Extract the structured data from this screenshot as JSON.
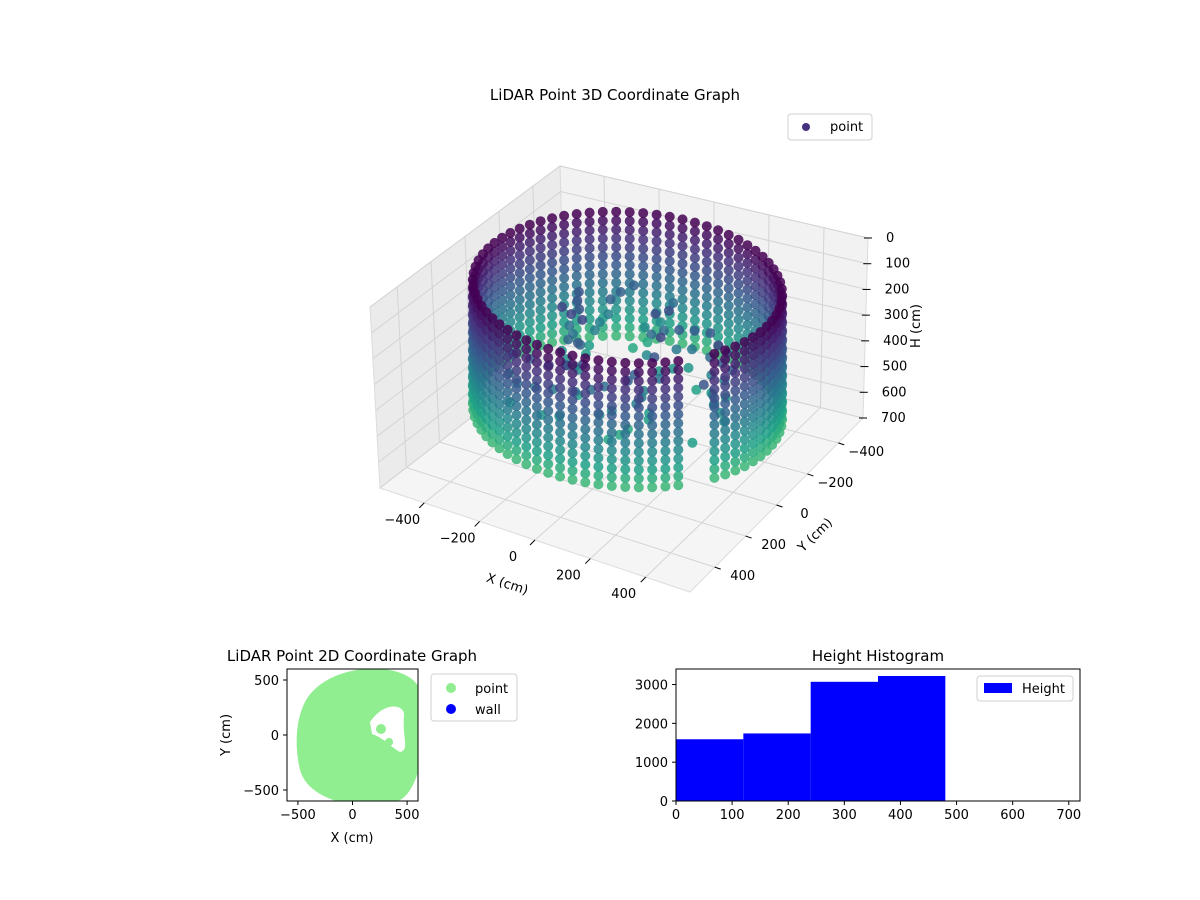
{
  "chart_data": [
    {
      "type": "scatter",
      "projection": "3d",
      "title": "LiDAR Point 3D Coordinate Graph",
      "xlabel": "X (cm)",
      "ylabel": "Y (cm)",
      "zlabel": "H (cm)",
      "xticks": [
        "−400",
        "−200",
        "0",
        "200",
        "400"
      ],
      "yticks": [
        "400",
        "200",
        "0",
        "−200",
        "−400"
      ],
      "zticks": [
        "0",
        "100",
        "200",
        "300",
        "400",
        "500",
        "600",
        "700"
      ],
      "xlim": [
        -560,
        560
      ],
      "ylim": [
        -560,
        560
      ],
      "zlim": [
        0,
        700
      ],
      "z_inverted": true,
      "colormap": "viridis",
      "legend": [
        "point"
      ],
      "legend_position": "top-right",
      "series": [
        {
          "name": "point",
          "color": "#46317e",
          "shape": "cylindrical wall of points",
          "wall_radius": 480,
          "height_range": [
            0,
            480
          ]
        }
      ]
    },
    {
      "type": "scatter",
      "title": "LiDAR Point 2D Coordinate Graph",
      "xlabel": "X (cm)",
      "ylabel": "Y (cm)",
      "xticks": [
        "−500",
        "0",
        "500"
      ],
      "yticks": [
        "500",
        "0",
        "−500"
      ],
      "xlim": [
        -600,
        600
      ],
      "ylim": [
        -600,
        600
      ],
      "legend": [
        "point",
        "wall"
      ],
      "legend_position": "outside-right",
      "series": [
        {
          "name": "point",
          "color": "#90ee90"
        },
        {
          "name": "wall",
          "color": "#0000ff"
        }
      ]
    },
    {
      "type": "bar",
      "subtype": "histogram",
      "title": "Height Histogram",
      "xticks": [
        "0",
        "100",
        "200",
        "300",
        "400",
        "500",
        "600",
        "700"
      ],
      "yticks": [
        "0",
        "1000",
        "2000",
        "3000"
      ],
      "xlim": [
        0,
        720
      ],
      "ylim": [
        0,
        3400
      ],
      "legend": [
        "Height"
      ],
      "legend_position": "top-right",
      "bin_edges": [
        0,
        120,
        240,
        360,
        480
      ],
      "values": [
        1590,
        1740,
        3070,
        3220
      ],
      "color": "#0000ff"
    }
  ]
}
